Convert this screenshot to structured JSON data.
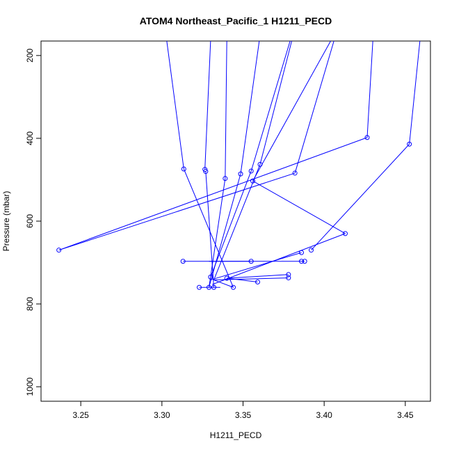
{
  "chart_data": {
    "type": "line",
    "title": "ATOM4 Northeast_Pacific_1 H1211_PECD",
    "xlabel": "H1211_PECD",
    "ylabel": "Pressure (mbar)",
    "xlim": [
      3.2255,
      3.4655
    ],
    "ylim": [
      1035,
      165
    ],
    "y_reversed": true,
    "x_ticks": [
      3.25,
      3.3,
      3.35,
      3.4,
      3.45
    ],
    "x_tick_labels": [
      "3.25",
      "3.30",
      "3.35",
      "3.40",
      "3.45"
    ],
    "y_ticks": [
      200,
      400,
      600,
      800,
      1000
    ],
    "y_tick_labels": [
      "200",
      "400",
      "600",
      "800",
      "1000"
    ],
    "grid": false,
    "legend": "none",
    "line_color": "#0000ff",
    "point_marker": "open-circle",
    "segments": [
      {
        "x": [
          3.3135,
          3.303
        ],
        "y": [
          474,
          165
        ]
      },
      {
        "x": [
          3.3135,
          3.344
        ],
        "y": [
          474,
          760
        ]
      },
      {
        "x": [
          3.3265,
          3.33
        ],
        "y": [
          475,
          165
        ]
      },
      {
        "x": [
          3.327,
          3.332
        ],
        "y": [
          480,
          760
        ]
      },
      {
        "x": [
          3.339,
          3.34
        ],
        "y": [
          497,
          165
        ]
      },
      {
        "x": [
          3.339,
          3.329
        ],
        "y": [
          497,
          760
        ]
      },
      {
        "x": [
          3.3485,
          3.36
        ],
        "y": [
          486,
          165
        ]
      },
      {
        "x": [
          3.3485,
          3.329
        ],
        "y": [
          486,
          760
        ]
      },
      {
        "x": [
          3.355,
          3.379
        ],
        "y": [
          479,
          165
        ]
      },
      {
        "x": [
          3.355,
          3.33
        ],
        "y": [
          479,
          735
        ]
      },
      {
        "x": [
          3.3605,
          3.38
        ],
        "y": [
          463,
          165
        ]
      },
      {
        "x": [
          3.3605,
          3.332
        ],
        "y": [
          463,
          742
        ]
      },
      {
        "x": [
          3.356,
          3.404
        ],
        "y": [
          503,
          165
        ]
      },
      {
        "x": [
          3.356,
          3.413
        ],
        "y": [
          503,
          630
        ]
      },
      {
        "x": [
          3.382,
          3.406
        ],
        "y": [
          484,
          165
        ]
      },
      {
        "x": [
          3.382,
          3.2365
        ],
        "y": [
          484,
          670
        ]
      },
      {
        "x": [
          3.4265,
          3.2365
        ],
        "y": [
          398,
          670
        ]
      },
      {
        "x": [
          3.4265,
          3.43
        ],
        "y": [
          398,
          165
        ]
      },
      {
        "x": [
          3.4525,
          3.459
        ],
        "y": [
          414,
          165
        ]
      },
      {
        "x": [
          3.4525,
          3.392
        ],
        "y": [
          414,
          670
        ]
      },
      {
        "x": [
          3.413,
          3.331
        ],
        "y": [
          630,
          753
        ]
      },
      {
        "x": [
          3.386,
          3.33
        ],
        "y": [
          676,
          742
        ]
      },
      {
        "x": [
          3.313,
          3.388
        ],
        "y": [
          697,
          697
        ]
      },
      {
        "x": [
          3.355,
          3.329
        ],
        "y": [
          697,
          697
        ]
      },
      {
        "x": [
          3.378,
          3.34
        ],
        "y": [
          729,
          738
        ]
      },
      {
        "x": [
          3.378,
          3.332
        ],
        "y": [
          737,
          742
        ]
      },
      {
        "x": [
          3.359,
          3.34
        ],
        "y": [
          747,
          738
        ]
      },
      {
        "x": [
          3.323,
          3.336
        ],
        "y": [
          760,
          760
        ]
      },
      {
        "x": [
          3.344,
          3.332
        ],
        "y": [
          760,
          742
        ]
      }
    ],
    "points": [
      {
        "x": 3.3135,
        "y": 474
      },
      {
        "x": 3.3265,
        "y": 475
      },
      {
        "x": 3.327,
        "y": 480
      },
      {
        "x": 3.339,
        "y": 497
      },
      {
        "x": 3.3485,
        "y": 486
      },
      {
        "x": 3.355,
        "y": 479
      },
      {
        "x": 3.3605,
        "y": 463
      },
      {
        "x": 3.356,
        "y": 503
      },
      {
        "x": 3.382,
        "y": 484
      },
      {
        "x": 3.4265,
        "y": 398
      },
      {
        "x": 3.4525,
        "y": 414
      },
      {
        "x": 3.2365,
        "y": 670
      },
      {
        "x": 3.413,
        "y": 630
      },
      {
        "x": 3.392,
        "y": 670
      },
      {
        "x": 3.386,
        "y": 676
      },
      {
        "x": 3.313,
        "y": 697
      },
      {
        "x": 3.355,
        "y": 697
      },
      {
        "x": 3.386,
        "y": 697
      },
      {
        "x": 3.388,
        "y": 697
      },
      {
        "x": 3.33,
        "y": 735
      },
      {
        "x": 3.34,
        "y": 738
      },
      {
        "x": 3.378,
        "y": 729
      },
      {
        "x": 3.378,
        "y": 737
      },
      {
        "x": 3.359,
        "y": 747
      },
      {
        "x": 3.323,
        "y": 760
      },
      {
        "x": 3.329,
        "y": 760
      },
      {
        "x": 3.332,
        "y": 760
      },
      {
        "x": 3.344,
        "y": 760
      }
    ]
  }
}
